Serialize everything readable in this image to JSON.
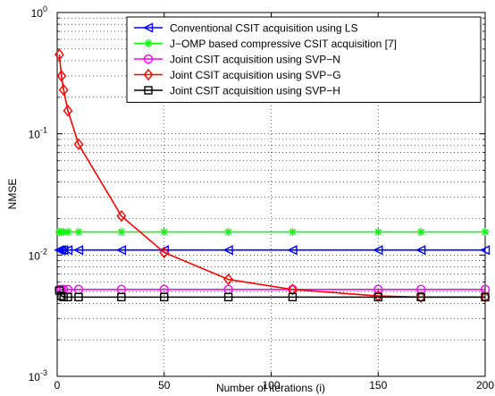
{
  "chart_data": {
    "type": "line",
    "xlabel": "Number of iterations (i)",
    "ylabel": "NMSE",
    "xlim": [
      0,
      200
    ],
    "ylim": [
      0.001,
      1
    ],
    "yscale": "log",
    "grid": true,
    "legend_position": "top-right",
    "x_ticks": [
      "0",
      "50",
      "100",
      "150",
      "200"
    ],
    "y_ticks": [
      {
        "base": "10",
        "exp": "0",
        "value": 1
      },
      {
        "base": "10",
        "exp": "-1",
        "value": 0.1
      },
      {
        "base": "10",
        "exp": "-2",
        "value": 0.01
      },
      {
        "base": "10",
        "exp": "-3",
        "value": 0.001
      }
    ],
    "series": [
      {
        "name": "Conventional CSIT acquisition using LS",
        "color": "#0000ff",
        "marker": "triangle-left",
        "x": [
          1,
          2,
          3,
          5,
          10,
          30,
          50,
          80,
          110,
          150,
          170,
          200
        ],
        "y": [
          0.011,
          0.011,
          0.011,
          0.011,
          0.011,
          0.011,
          0.011,
          0.011,
          0.011,
          0.011,
          0.011,
          0.011
        ]
      },
      {
        "name": "J−OMP based compressive CSIT acquisition [7]",
        "color": "#00ff00",
        "marker": "star",
        "x": [
          1,
          2,
          3,
          5,
          10,
          30,
          50,
          80,
          110,
          150,
          170,
          200
        ],
        "y": [
          0.0155,
          0.0155,
          0.0155,
          0.0155,
          0.0155,
          0.0155,
          0.0155,
          0.0155,
          0.0155,
          0.0155,
          0.0155,
          0.0155
        ]
      },
      {
        "name": "Joint CSIT acquisition using SVP−N",
        "color": "#ff00ff",
        "marker": "circle",
        "x": [
          1,
          2,
          3,
          5,
          10,
          30,
          50,
          80,
          110,
          150,
          170,
          200
        ],
        "y": [
          0.0052,
          0.0052,
          0.0052,
          0.0052,
          0.0052,
          0.0052,
          0.0052,
          0.0052,
          0.0052,
          0.0052,
          0.0052,
          0.0052
        ]
      },
      {
        "name": "Joint CSIT acquisition using SVP−G",
        "color": "#ff0000",
        "marker": "diamond",
        "x": [
          1,
          2,
          3,
          5,
          10,
          30,
          50,
          80,
          110,
          150,
          170,
          200
        ],
        "y": [
          0.45,
          0.3,
          0.23,
          0.155,
          0.082,
          0.021,
          0.0105,
          0.0063,
          0.0052,
          0.0046,
          0.0045,
          0.0045
        ]
      },
      {
        "name": "Joint CSIT acquisition using SVP−H",
        "color": "#000000",
        "marker": "square",
        "x": [
          1,
          2,
          3,
          5,
          10,
          30,
          50,
          80,
          110,
          150,
          170,
          200
        ],
        "y": [
          0.0051,
          0.0046,
          0.0045,
          0.0045,
          0.0045,
          0.0045,
          0.0045,
          0.0045,
          0.0045,
          0.0045,
          0.0045,
          0.0045
        ]
      }
    ]
  }
}
